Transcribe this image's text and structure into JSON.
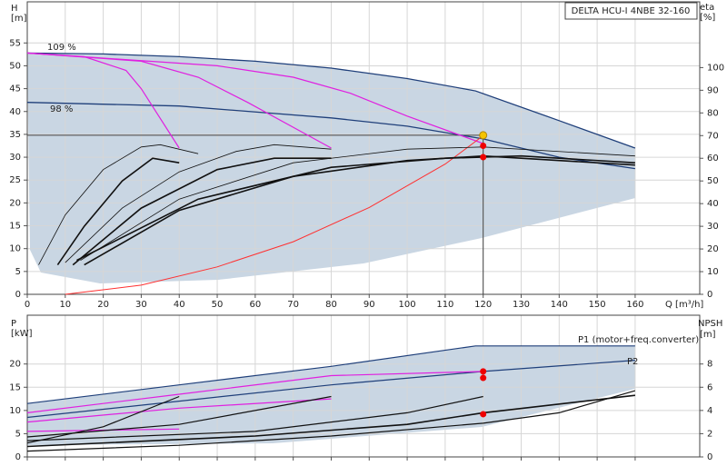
{
  "chart_data": [
    {
      "type": "line",
      "title": "DELTA HCU-I 4NBE 32-160",
      "y_label": "H",
      "y_unit": "[m]",
      "y2_label": "eta",
      "y2_unit": "[%]",
      "x_label": "Q [m³/h]",
      "xlim": [
        0,
        177
      ],
      "xticks": [
        0,
        10,
        20,
        30,
        40,
        50,
        60,
        70,
        80,
        90,
        100,
        110,
        120,
        130,
        140,
        150,
        160
      ],
      "ylim": [
        0,
        64
      ],
      "yticks": [
        0,
        5,
        10,
        15,
        20,
        25,
        30,
        35,
        40,
        45,
        50,
        55
      ],
      "y2lim": [
        0,
        129
      ],
      "y2ticks": [
        0,
        10,
        20,
        30,
        40,
        50,
        60,
        70,
        80,
        90,
        100
      ],
      "grid": true,
      "annotations": [
        "109 %",
        "98 %"
      ],
      "series": [
        {
          "color": "#1f3f7a",
          "width": 1.3,
          "x": [
            0,
            20,
            40,
            60,
            80,
            100,
            118,
            140,
            160
          ],
          "values": [
            52.8,
            52.6,
            52,
            51,
            49.5,
            47.2,
            44.5,
            38,
            32
          ]
        },
        {
          "color": "#1f3f7a",
          "width": 1.3,
          "x": [
            0,
            40,
            80,
            100,
            120,
            140,
            160
          ],
          "values": [
            42,
            41.2,
            38.6,
            36.8,
            34,
            30,
            27.5
          ]
        },
        {
          "color": "#e020e0",
          "width": 1.2,
          "x": [
            0,
            15,
            26,
            30,
            40
          ],
          "values": [
            52.8,
            52,
            49,
            45,
            32
          ]
        },
        {
          "color": "#e020e0",
          "width": 1.2,
          "x": [
            0,
            30,
            45,
            58,
            80
          ],
          "values": [
            52.8,
            51,
            47.5,
            42,
            32
          ]
        },
        {
          "color": "#e020e0",
          "width": 1.2,
          "x": [
            0,
            50,
            70,
            85,
            100,
            120
          ],
          "values": [
            52.8,
            50,
            47.5,
            44,
            39,
            33
          ]
        },
        {
          "color": "#ff3030",
          "width": 1,
          "x": [
            10,
            30,
            50,
            70,
            90,
            110,
            120
          ],
          "values": [
            0,
            2,
            6,
            11.5,
            19,
            28.5,
            34.7
          ]
        },
        {
          "color": "#111111",
          "width": 0.8,
          "axis": "y2",
          "x": [
            3,
            10,
            20,
            30,
            35,
            45
          ],
          "values": [
            13,
            35,
            55,
            65,
            66,
            62
          ]
        },
        {
          "color": "#111111",
          "width": 1.6,
          "axis": "y2",
          "x": [
            8,
            15,
            25,
            33,
            40
          ],
          "values": [
            13,
            30,
            50,
            60,
            58
          ]
        },
        {
          "color": "#111111",
          "width": 0.8,
          "axis": "y2",
          "x": [
            10,
            25,
            40,
            55,
            65,
            80
          ],
          "values": [
            14,
            38,
            54,
            63,
            66,
            64
          ]
        },
        {
          "color": "#111111",
          "width": 1.6,
          "axis": "y2",
          "x": [
            12,
            30,
            50,
            65,
            80
          ],
          "values": [
            13,
            38,
            55,
            60,
            60
          ]
        },
        {
          "color": "#111111",
          "width": 0.8,
          "axis": "y2",
          "x": [
            14,
            40,
            70,
            100,
            120,
            160
          ],
          "values": [
            15,
            42,
            58,
            64,
            65,
            61
          ]
        },
        {
          "color": "#111111",
          "width": 1.6,
          "axis": "y2",
          "x": [
            15,
            40,
            70,
            100,
            120,
            160
          ],
          "values": [
            13,
            37,
            52,
            59,
            61,
            57
          ]
        },
        {
          "color": "#111111",
          "width": 1.6,
          "axis": "y2",
          "x": [
            13,
            45,
            80,
            110,
            130,
            160
          ],
          "values": [
            15,
            42,
            56,
            60,
            61,
            58
          ]
        }
      ],
      "operating_point": {
        "x": 120,
        "y": 34.8,
        "color": "#f5c400"
      },
      "points": [
        {
          "x": 120,
          "y": 65.5,
          "axis": "y2",
          "color": "#ee0000"
        },
        {
          "x": 120,
          "y": 60.5,
          "axis": "y2",
          "color": "#ee0000"
        }
      ]
    },
    {
      "type": "line",
      "y_label": "P",
      "y_unit": "[kW]",
      "y2_label": "NPSH",
      "y2_unit": "[m]",
      "xlim": [
        0,
        177
      ],
      "xticks": [
        0,
        10,
        20,
        30,
        40,
        50,
        60,
        70,
        80,
        90,
        100,
        110,
        120,
        130,
        140,
        150,
        160
      ],
      "ylim": [
        0,
        30.5
      ],
      "yticks": [
        0,
        5,
        10,
        15,
        20
      ],
      "y2lim": [
        0,
        12.2
      ],
      "y2ticks": [
        0,
        2,
        4,
        6,
        8
      ],
      "grid": true,
      "annotations": [
        "P1 (motor+freq.converter)",
        "P2"
      ],
      "series": [
        {
          "color": "#1f3f7a",
          "width": 1.2,
          "x": [
            0,
            40,
            80,
            118,
            160
          ],
          "values": [
            11.5,
            15.5,
            19.5,
            23.9,
            23.9
          ]
        },
        {
          "color": "#1f3f7a",
          "width": 1.2,
          "x": [
            0,
            40,
            80,
            120,
            160
          ],
          "values": [
            8.5,
            12,
            15.5,
            18.4,
            20.8
          ]
        },
        {
          "color": "#e020e0",
          "width": 1.2,
          "x": [
            0,
            40,
            80,
            120
          ],
          "values": [
            9.5,
            13.5,
            17.5,
            18.4
          ]
        },
        {
          "color": "#e020e0",
          "width": 1.2,
          "x": [
            0,
            40,
            80
          ],
          "values": [
            7.5,
            10.5,
            12.5
          ]
        },
        {
          "color": "#e020e0",
          "width": 1.2,
          "x": [
            0,
            40
          ],
          "values": [
            5.5,
            6
          ]
        },
        {
          "color": "#111111",
          "width": 1.2,
          "x": [
            0,
            20,
            40
          ],
          "values": [
            3,
            6.5,
            13
          ]
        },
        {
          "color": "#111111",
          "width": 1.2,
          "x": [
            0,
            40,
            80
          ],
          "values": [
            4.3,
            7,
            13
          ]
        },
        {
          "color": "#111111",
          "width": 1.2,
          "x": [
            0,
            60,
            100,
            120
          ],
          "values": [
            3.5,
            5.5,
            9.5,
            13
          ]
        },
        {
          "color": "#111111",
          "width": 1.6,
          "axis": "y2",
          "x": [
            0,
            60,
            100,
            120,
            160
          ],
          "values": [
            0.9,
            1.8,
            2.8,
            3.8,
            5.3
          ]
        },
        {
          "color": "#111111",
          "width": 1.2,
          "axis": "y2",
          "x": [
            0,
            40,
            80,
            120,
            140,
            160
          ],
          "values": [
            0.5,
            1,
            1.8,
            2.9,
            3.8,
            5.7
          ]
        }
      ],
      "points": [
        {
          "x": 120,
          "y": 18.4,
          "color": "#ee0000"
        },
        {
          "x": 120,
          "y": 17,
          "color": "#ee0000"
        },
        {
          "x": 120,
          "y": 9.2,
          "color": "#ee0000"
        }
      ]
    }
  ]
}
